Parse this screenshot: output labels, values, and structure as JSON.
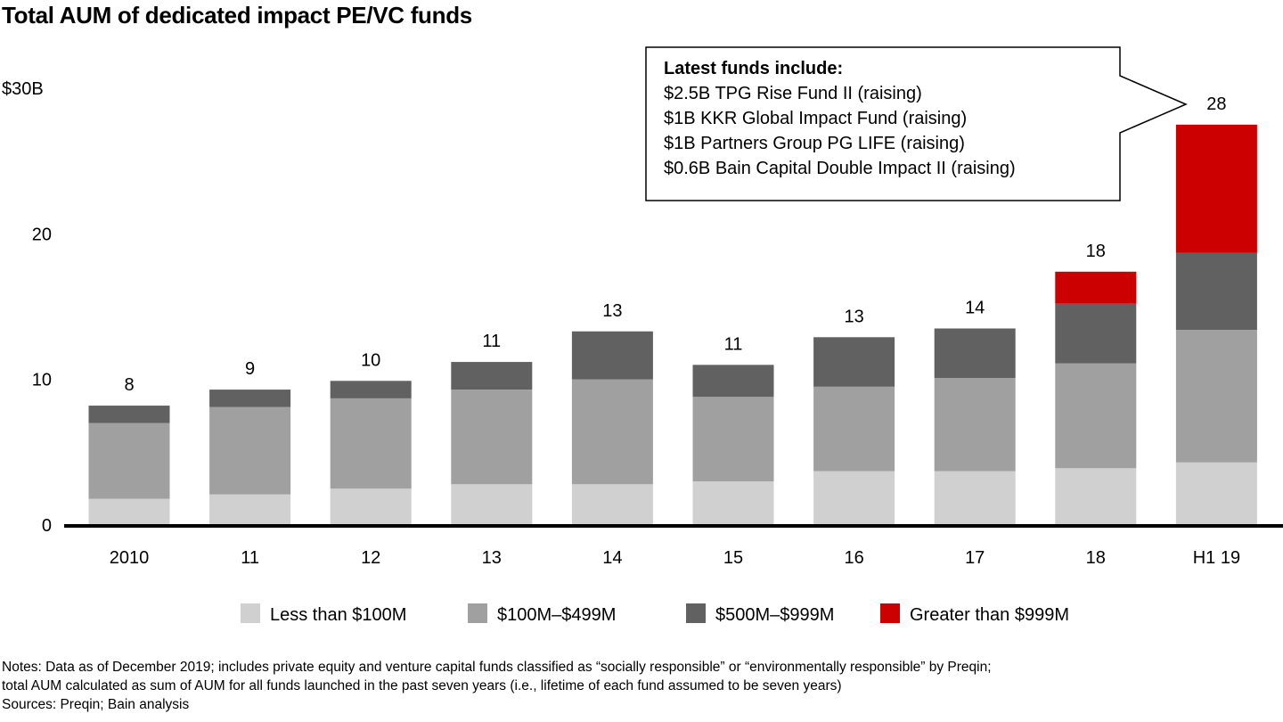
{
  "title": "Total AUM of dedicated impact PE/VC funds",
  "chart_data": {
    "type": "bar",
    "stacked": true,
    "title": "Total AUM of dedicated impact PE/VC funds",
    "xlabel": "",
    "ylabel": "",
    "ylim": [
      0,
      30
    ],
    "yticks": [
      0,
      10,
      20,
      30
    ],
    "ytick_labels": [
      "0",
      "10",
      "20",
      "$30B"
    ],
    "grid": false,
    "categories": [
      "2010",
      "11",
      "12",
      "13",
      "14",
      "15",
      "16",
      "17",
      "18",
      "H1 19"
    ],
    "totals_labels": [
      "8",
      "9",
      "10",
      "11",
      "13",
      "11",
      "13",
      "14",
      "18",
      "28"
    ],
    "series": [
      {
        "name": "Less than $100M",
        "color": "#d0d0d0",
        "values": [
          1.8,
          2.1,
          2.5,
          2.8,
          2.8,
          3.0,
          3.7,
          3.7,
          3.9,
          4.3
        ]
      },
      {
        "name": "$100M–$499M",
        "color": "#a0a0a0",
        "values": [
          5.2,
          6.0,
          6.2,
          6.5,
          7.2,
          5.8,
          5.8,
          6.4,
          7.2,
          9.1
        ]
      },
      {
        "name": "$500M–$999M",
        "color": "#616161",
        "values": [
          1.2,
          1.2,
          1.2,
          1.9,
          3.3,
          2.2,
          3.4,
          3.4,
          4.1,
          5.3
        ]
      },
      {
        "name": "Greater than $999M",
        "color": "#cc0000",
        "values": [
          0,
          0,
          0,
          0,
          0,
          0,
          0,
          0,
          2.2,
          8.8
        ]
      }
    ],
    "legend_position": "bottom",
    "annotation": {
      "target_category": "H1 19",
      "heading": "Latest funds include:",
      "lines": [
        "$2.5B TPG Rise Fund II (raising)",
        "$1B KKR Global Impact Fund (raising)",
        "$1B Partners Group PG LIFE (raising)",
        "$0.6B Bain Capital Double Impact II (raising)"
      ]
    }
  },
  "notes": {
    "line1": "Notes: Data as of December 2019; includes private equity and venture capital funds classified as “socially responsible” or “environmentally responsible” by Preqin;",
    "line2": "total AUM calculated as sum of AUM for all funds launched in the past seven years (i.e., lifetime of each fund assumed to be seven years)",
    "sources": "Sources: Preqin; Bain analysis"
  }
}
